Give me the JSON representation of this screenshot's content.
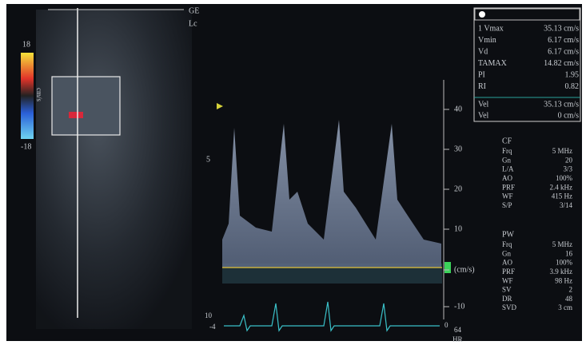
{
  "header": {
    "probe": "GE",
    "preset": "Lc"
  },
  "color_scale": {
    "max": "18",
    "unit": "cm/s",
    "min": "-18"
  },
  "measurements": [
    {
      "label": "1 Vmax",
      "value": "35.13 cm/s"
    },
    {
      "label": "Vmin",
      "value": "6.17 cm/s"
    },
    {
      "label": "Vd",
      "value": "6.17 cm/s"
    },
    {
      "label": "TAMAX",
      "value": "14.82 cm/s"
    },
    {
      "label": "PI",
      "value": "1.95"
    },
    {
      "label": "RI",
      "value": "0.82"
    }
  ],
  "cursor_values": [
    {
      "label": "Vel",
      "value": "35.13 cm/s"
    },
    {
      "label": "Vel",
      "value": "0 cm/s"
    }
  ],
  "velocity_scale": [
    "40",
    "30",
    "20",
    "10",
    "(cm/s)",
    "-10"
  ],
  "depth_label": "5",
  "ecg": {
    "left_top": "10",
    "left_bottom": "-4",
    "right_top": "0",
    "right_mid": "64",
    "right_bottom": "HR"
  },
  "cf_params": {
    "title": "CF",
    "rows": [
      {
        "label": "Frq",
        "value": "5 MHz"
      },
      {
        "label": "Gn",
        "value": "20"
      },
      {
        "label": "L/A",
        "value": "3/3"
      },
      {
        "label": "AO",
        "value": "100%"
      },
      {
        "label": "PRF",
        "value": "2.4 kHz"
      },
      {
        "label": "WF",
        "value": "415 Hz"
      },
      {
        "label": "S/P",
        "value": "3/14"
      }
    ]
  },
  "pw_params": {
    "title": "PW",
    "rows": [
      {
        "label": "Frq",
        "value": "5 MHz"
      },
      {
        "label": "Gn",
        "value": "16"
      },
      {
        "label": "AO",
        "value": "100%"
      },
      {
        "label": "PRF",
        "value": "3.9 kHz"
      },
      {
        "label": "WF",
        "value": "98 Hz"
      },
      {
        "label": "SV",
        "value": "2"
      },
      {
        "label": "DR",
        "value": "48"
      },
      {
        "label": "SVD",
        "value": "3 cm"
      }
    ]
  }
}
